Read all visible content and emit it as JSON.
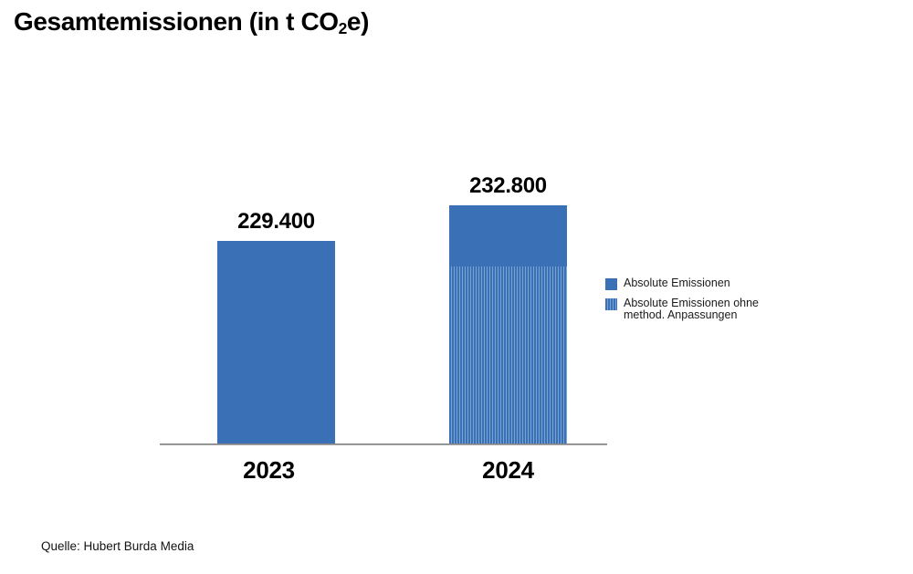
{
  "page": {
    "title": {
      "pre": "Gesamtemissionen (in t CO",
      "sub": "2",
      "post": "e)"
    },
    "source": "Quelle: Hubert Burda Media"
  },
  "legend": {
    "items": [
      {
        "label": "Absolute Emissionen",
        "swatch": "solid-blue"
      },
      {
        "label_line1": "Absolute Emissionen ohne",
        "label_line2": "method. Anpassungen",
        "swatch": "striped-blue"
      }
    ]
  },
  "colors": {
    "bar_blue": "#3A70B5",
    "stripe_light_blue": "#7AA5D2",
    "axis_line_gray": "#8A8A8A",
    "text_black": "#000000"
  },
  "chart_data": {
    "type": "bar",
    "title": "Gesamtemissionen (in t CO2e)",
    "unit": "t CO2e",
    "categories": [
      "2023",
      "2024"
    ],
    "series": [
      {
        "name": "Absolute Emissionen",
        "style": "solid",
        "values": [
          229400,
          232800
        ],
        "value_labels": [
          "229.400",
          "232.800"
        ]
      },
      {
        "name": "Absolute Emissionen ohne method. Anpassungen",
        "style": "striped",
        "values": [
          null,
          227000
        ],
        "note": "Overlay shown only on the 2024 bar as a striped segment; value is unlabeled in the chart and estimated from the segment height"
      }
    ],
    "value_labels_shown": true,
    "grid": false,
    "legend_position": "right",
    "axis_note": "Only x-axis baseline drawn; y-axis hidden and truncated (bars do not start at zero)"
  }
}
